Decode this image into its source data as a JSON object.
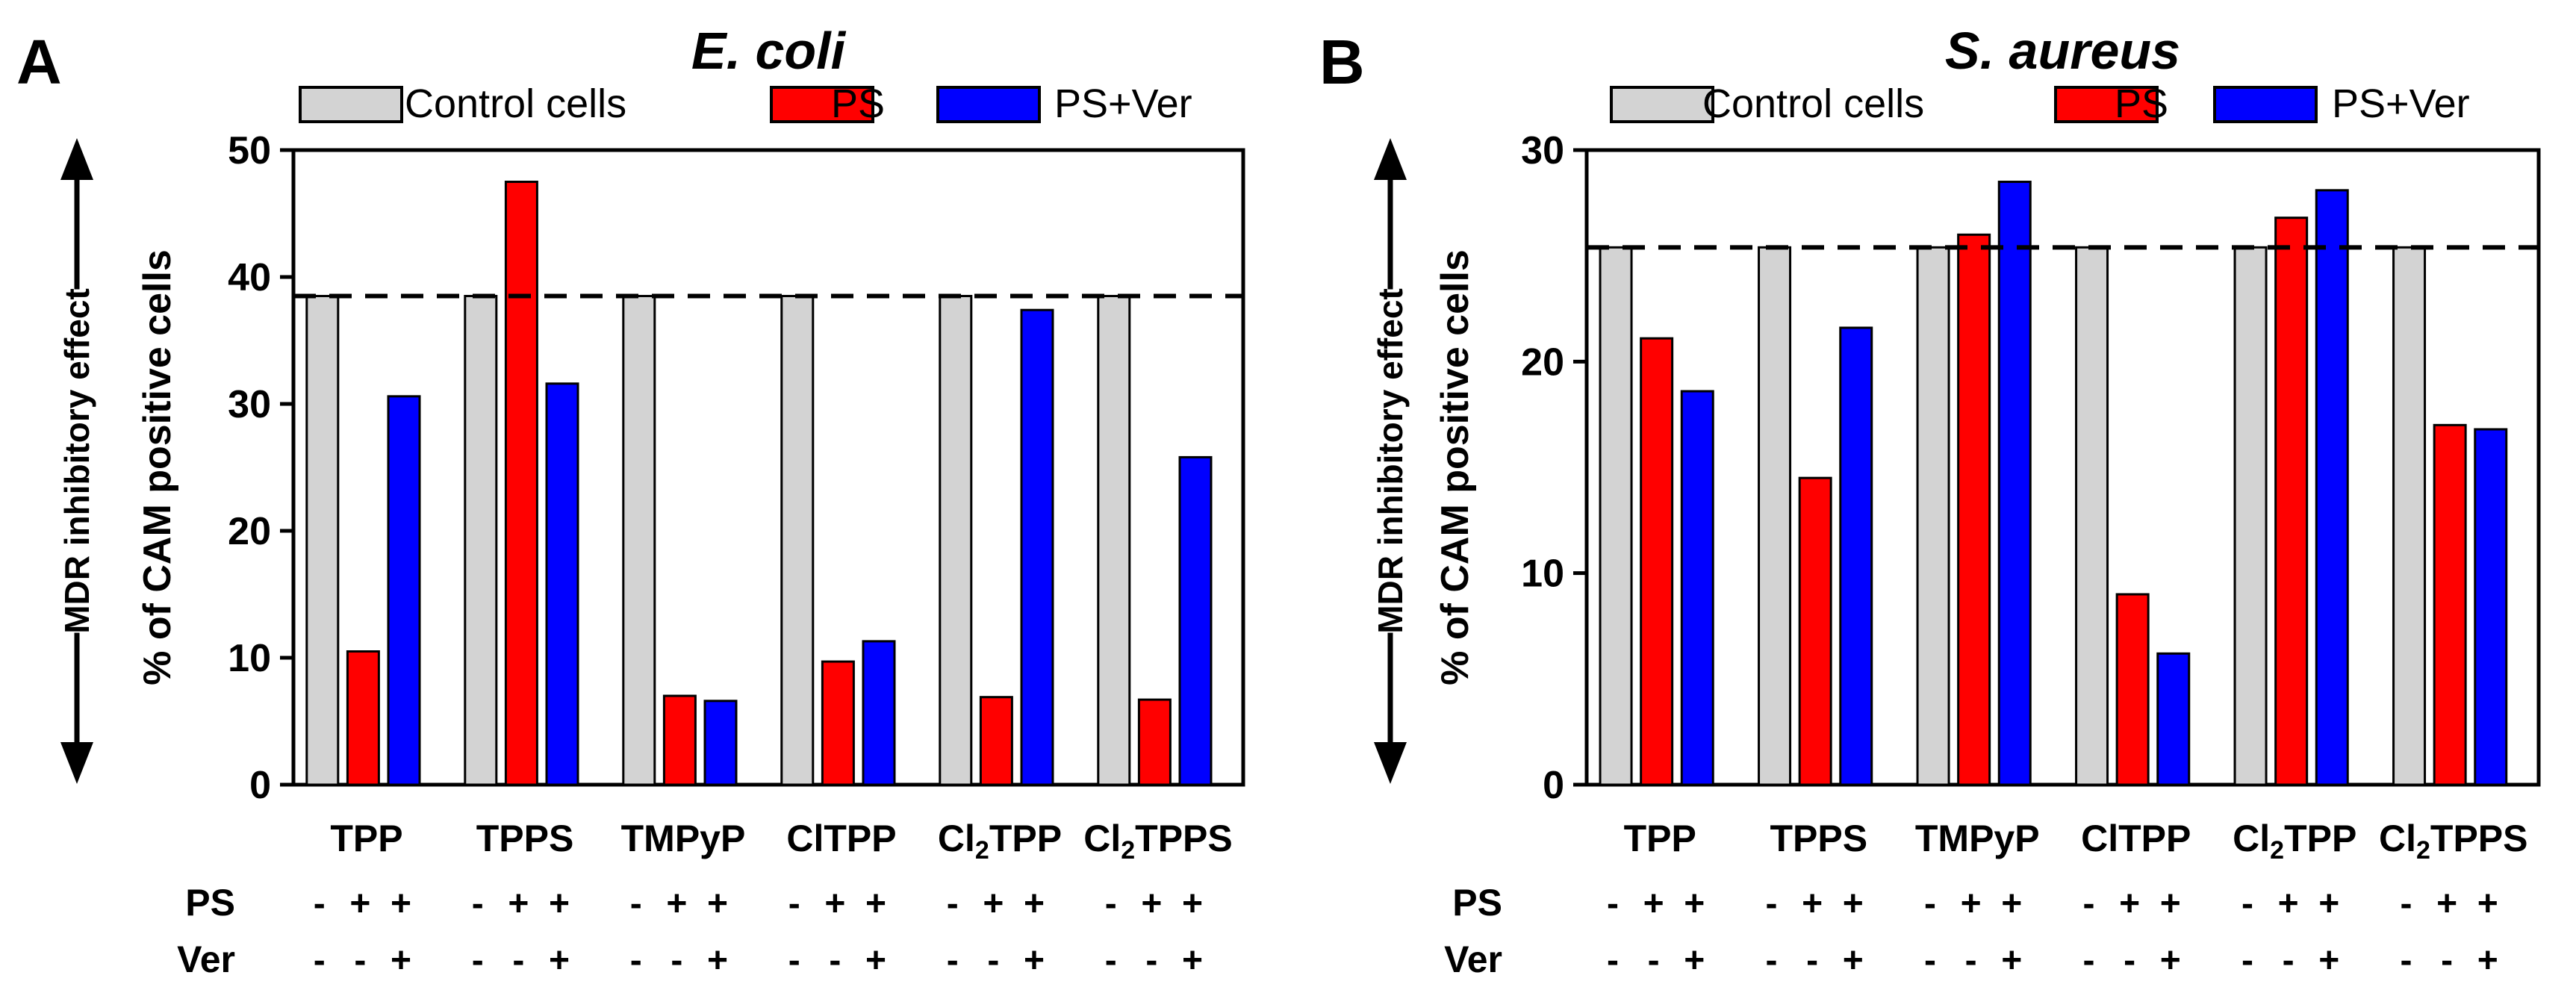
{
  "colors": {
    "control": "#d3d3d3",
    "ps": "#ff0000",
    "psver": "#0000ff",
    "edge": "#000000"
  },
  "legend": [
    "Control cells",
    "PS",
    "PS+Ver"
  ],
  "side_label": "MDR inhibitory effect",
  "row_labels": [
    "PS",
    "Ver"
  ],
  "signs": {
    "PS": [
      "-",
      "+",
      "+"
    ],
    "Ver": [
      "-",
      "-",
      "+"
    ]
  },
  "chart_data": [
    {
      "type": "bar",
      "panel": "A",
      "title": "E. coli",
      "ylabel": "% of CAM positive cells",
      "xlabel": "",
      "ylim": [
        0,
        50
      ],
      "yticks": [
        0,
        10,
        20,
        30,
        40,
        50
      ],
      "reference_line": 38.5,
      "categories": [
        "TPP",
        "TPPS",
        "TMPyP",
        "ClTPP",
        "Cl2TPP",
        "Cl2TPPS"
      ],
      "category_labels": [
        {
          "main": "TPP",
          "sub": "",
          "rest": ""
        },
        {
          "main": "TPPS",
          "sub": "",
          "rest": ""
        },
        {
          "main": "TMPyP",
          "sub": "",
          "rest": ""
        },
        {
          "main": "ClTPP",
          "sub": "",
          "rest": ""
        },
        {
          "main": "Cl",
          "sub": "2",
          "rest": "TPP"
        },
        {
          "main": "Cl",
          "sub": "2",
          "rest": "TPPS"
        }
      ],
      "series": [
        {
          "name": "Control cells",
          "values": [
            38.5,
            38.5,
            38.5,
            38.5,
            38.5,
            38.5
          ]
        },
        {
          "name": "PS",
          "values": [
            10.5,
            47.5,
            7.0,
            9.7,
            6.9,
            6.7
          ]
        },
        {
          "name": "PS+Ver",
          "values": [
            30.6,
            31.6,
            6.6,
            11.3,
            37.4,
            25.8
          ]
        }
      ],
      "legend_position": "top"
    },
    {
      "type": "bar",
      "panel": "B",
      "title": "S. aureus",
      "ylabel": "% of CAM positive cells",
      "xlabel": "",
      "ylim": [
        0,
        30
      ],
      "yticks": [
        0,
        10,
        20,
        30
      ],
      "reference_line": 25.4,
      "categories": [
        "TPP",
        "TPPS",
        "TMPyP",
        "ClTPP",
        "Cl2TPP",
        "Cl2TPPS"
      ],
      "category_labels": [
        {
          "main": "TPP",
          "sub": "",
          "rest": ""
        },
        {
          "main": "TPPS",
          "sub": "",
          "rest": ""
        },
        {
          "main": "TMPyP",
          "sub": "",
          "rest": ""
        },
        {
          "main": "ClTPP",
          "sub": "",
          "rest": ""
        },
        {
          "main": "Cl",
          "sub": "2",
          "rest": "TPP"
        },
        {
          "main": "Cl",
          "sub": "2",
          "rest": "TPPS"
        }
      ],
      "series": [
        {
          "name": "Control cells",
          "values": [
            25.4,
            25.4,
            25.4,
            25.4,
            25.4,
            25.4
          ]
        },
        {
          "name": "PS",
          "values": [
            21.1,
            14.5,
            26.0,
            9.0,
            26.8,
            17.0
          ]
        },
        {
          "name": "PS+Ver",
          "values": [
            18.6,
            21.6,
            28.5,
            6.2,
            28.1,
            16.8
          ]
        }
      ],
      "legend_position": "top"
    }
  ]
}
